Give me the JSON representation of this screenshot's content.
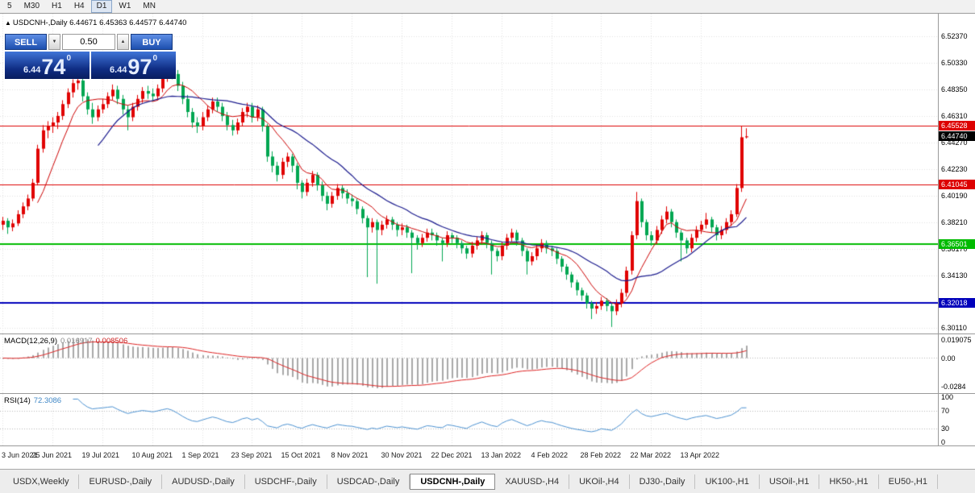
{
  "toolbar": {
    "timeframes": [
      "5",
      "M30",
      "H1",
      "H4",
      "D1",
      "W1",
      "MN"
    ],
    "active": "D1"
  },
  "header": {
    "direction": "▲",
    "symbol": "USDCNH-,Daily",
    "ohlc": "6.44671 6.45363 6.44577 6.44740"
  },
  "trade_panel": {
    "sell_label": "SELL",
    "buy_label": "BUY",
    "volume": "0.50",
    "spinner_up": "▲",
    "spinner_down": "▼",
    "bid": {
      "small": "6.44",
      "big": "74",
      "sup": "0"
    },
    "ask": {
      "small": "6.44",
      "big": "97",
      "sup": "0"
    }
  },
  "indicator_labels": {
    "macd_name": "MACD(12,26,9)",
    "macd_main": "0.016917",
    "macd_signal": "0.008506",
    "rsi_name": "RSI(14)",
    "rsi_value": "72.3086"
  },
  "tabs": {
    "items": [
      "USDX,Weekly",
      "EURUSD-,Daily",
      "AUDUSD-,Daily",
      "USDCHF-,Daily",
      "USDCAD-,Daily",
      "USDCNH-,Daily",
      "XAUUSD-,H4",
      "UKOil-,H4",
      "DJ30-,Daily",
      "UK100-,H1",
      "USOil-,H1",
      "HK50-,H1",
      "EU50-,H1"
    ],
    "active": "USDCNH-,Daily"
  },
  "chart_data": {
    "type": "candlestick",
    "symbol": "USDCNH-",
    "timeframe": "Daily",
    "current_bar": {
      "open": 6.44671,
      "high": 6.45363,
      "low": 6.44577,
      "close": 6.4474
    },
    "ylim": [
      6.297,
      6.541
    ],
    "y_ticks": [
      "6.52370",
      "6.50330",
      "6.48350",
      "6.46310",
      "6.44270",
      "6.42230",
      "6.40190",
      "6.38210",
      "6.36170",
      "6.34130",
      "6.32090",
      "6.30110"
    ],
    "x_labels": [
      "3 Jun 2021",
      "25 Jun 2021",
      "19 Jul 2021",
      "10 Aug 2021",
      "1 Sep 2021",
      "23 Sep 2021",
      "15 Oct 2021",
      "8 Nov 2021",
      "30 Nov 2021",
      "22 Dec 2021",
      "13 Jan 2022",
      "4 Feb 2022",
      "28 Feb 2022",
      "22 Mar 2022",
      "13 Apr 2022"
    ],
    "x_label_step": 10,
    "up_color": "#e00000",
    "down_color": "#00a651",
    "ma_fast": {
      "period": 8,
      "color": "#cc0000"
    },
    "ma_slow": {
      "period": 20,
      "color": "#1c1c8e"
    },
    "levels": [
      {
        "value": 6.45528,
        "label": "6.45528",
        "color": "#dd0000",
        "width": 1
      },
      {
        "value": 6.41045,
        "label": "6.41045",
        "color": "#dd0000",
        "width": 1
      },
      {
        "value": 6.36501,
        "label": "6.36501",
        "color": "#00bb00",
        "width": 2
      },
      {
        "value": 6.32018,
        "label": "6.32018",
        "color": "#0000bb",
        "width": 2
      }
    ],
    "current_price": {
      "value": 6.4474,
      "label": "6.44740",
      "box_color": "#000000"
    },
    "macd": {
      "params": [
        12,
        26,
        9
      ],
      "main": 0.016917,
      "signal": 0.008506,
      "scale": {
        "top": "0.019075",
        "zero": "0.00",
        "bottom": "-0.0284"
      },
      "hist_color": "#a8a8a8",
      "signal_color": "#dd2222"
    },
    "rsi": {
      "period": 14,
      "value": 72.3086,
      "scale": [
        "100",
        "70",
        "30",
        "0"
      ],
      "levels": [
        70,
        30
      ],
      "color": "#4a90d0"
    },
    "ohlc": [
      [
        6.38,
        6.386,
        6.376,
        6.383
      ],
      [
        6.383,
        6.385,
        6.373,
        6.378
      ],
      [
        6.378,
        6.384,
        6.375,
        6.381
      ],
      [
        6.381,
        6.391,
        6.379,
        6.388
      ],
      [
        6.388,
        6.397,
        6.385,
        6.394
      ],
      [
        6.394,
        6.403,
        6.391,
        6.4
      ],
      [
        6.4,
        6.415,
        6.398,
        6.412
      ],
      [
        6.412,
        6.441,
        6.41,
        6.438
      ],
      [
        6.438,
        6.456,
        6.435,
        6.452
      ],
      [
        6.452,
        6.459,
        6.446,
        6.455
      ],
      [
        6.455,
        6.462,
        6.45,
        6.458
      ],
      [
        6.458,
        6.466,
        6.453,
        6.463
      ],
      [
        6.463,
        6.475,
        6.46,
        6.472
      ],
      [
        6.472,
        6.484,
        6.469,
        6.481
      ],
      [
        6.481,
        6.491,
        6.477,
        6.488
      ],
      [
        6.488,
        6.494,
        6.483,
        6.49
      ],
      [
        6.49,
        6.493,
        6.474,
        6.478
      ],
      [
        6.478,
        6.481,
        6.464,
        6.468
      ],
      [
        6.468,
        6.473,
        6.457,
        6.462
      ],
      [
        6.462,
        6.471,
        6.459,
        6.468
      ],
      [
        6.468,
        6.476,
        6.465,
        6.472
      ],
      [
        6.472,
        6.481,
        6.469,
        6.478
      ],
      [
        6.478,
        6.487,
        6.475,
        6.483
      ],
      [
        6.483,
        6.486,
        6.472,
        6.476
      ],
      [
        6.476,
        6.479,
        6.464,
        6.468
      ],
      [
        6.468,
        6.471,
        6.452,
        6.462
      ],
      [
        6.462,
        6.473,
        6.459,
        6.47
      ],
      [
        6.47,
        6.479,
        6.467,
        6.476
      ],
      [
        6.476,
        6.485,
        6.473,
        6.482
      ],
      [
        6.482,
        6.486,
        6.476,
        6.48
      ],
      [
        6.48,
        6.484,
        6.474,
        6.478
      ],
      [
        6.478,
        6.487,
        6.475,
        6.484
      ],
      [
        6.484,
        6.495,
        6.481,
        6.492
      ],
      [
        6.492,
        6.505,
        6.489,
        6.499
      ],
      [
        6.499,
        6.503,
        6.491,
        6.495
      ],
      [
        6.495,
        6.498,
        6.482,
        6.486
      ],
      [
        6.486,
        6.489,
        6.472,
        6.476
      ],
      [
        6.476,
        6.479,
        6.462,
        6.466
      ],
      [
        6.466,
        6.469,
        6.454,
        6.458
      ],
      [
        6.458,
        6.462,
        6.45,
        6.455
      ],
      [
        6.455,
        6.466,
        6.452,
        6.462
      ],
      [
        6.462,
        6.471,
        6.459,
        6.468
      ],
      [
        6.468,
        6.477,
        6.465,
        6.474
      ],
      [
        6.474,
        6.477,
        6.466,
        6.47
      ],
      [
        6.47,
        6.473,
        6.459,
        6.463
      ],
      [
        6.463,
        6.466,
        6.452,
        6.456
      ],
      [
        6.456,
        6.46,
        6.448,
        6.452
      ],
      [
        6.452,
        6.461,
        6.449,
        6.458
      ],
      [
        6.458,
        6.469,
        6.455,
        6.466
      ],
      [
        6.466,
        6.473,
        6.462,
        6.47
      ],
      [
        6.47,
        6.473,
        6.458,
        6.462
      ],
      [
        6.462,
        6.471,
        6.459,
        6.468
      ],
      [
        6.468,
        6.47,
        6.451,
        6.455
      ],
      [
        6.455,
        6.457,
        6.428,
        6.432
      ],
      [
        6.432,
        6.436,
        6.42,
        6.425
      ],
      [
        6.425,
        6.428,
        6.413,
        6.418
      ],
      [
        6.418,
        6.431,
        6.415,
        6.428
      ],
      [
        6.428,
        6.435,
        6.424,
        6.432
      ],
      [
        6.432,
        6.434,
        6.42,
        6.425
      ],
      [
        6.425,
        6.427,
        6.407,
        6.412
      ],
      [
        6.412,
        6.414,
        6.4,
        6.405
      ],
      [
        6.405,
        6.415,
        6.402,
        6.412
      ],
      [
        6.412,
        6.421,
        6.409,
        6.418
      ],
      [
        6.418,
        6.42,
        6.406,
        6.41
      ],
      [
        6.41,
        6.413,
        6.398,
        6.402
      ],
      [
        6.402,
        6.405,
        6.391,
        6.396
      ],
      [
        6.396,
        6.405,
        6.393,
        6.402
      ],
      [
        6.402,
        6.411,
        6.399,
        6.408
      ],
      [
        6.408,
        6.41,
        6.4,
        6.404
      ],
      [
        6.404,
        6.407,
        6.396,
        6.4
      ],
      [
        6.4,
        6.403,
        6.394,
        6.398
      ],
      [
        6.398,
        6.4,
        6.388,
        6.392
      ],
      [
        6.392,
        6.394,
        6.381,
        6.385
      ],
      [
        6.385,
        6.387,
        6.34,
        6.378
      ],
      [
        6.378,
        6.385,
        6.374,
        6.382
      ],
      [
        6.382,
        6.384,
        6.335,
        6.376
      ],
      [
        6.376,
        6.383,
        6.372,
        6.38
      ],
      [
        6.38,
        6.387,
        6.377,
        6.384
      ],
      [
        6.384,
        6.386,
        6.376,
        6.38
      ],
      [
        6.38,
        6.382,
        6.371,
        6.376
      ],
      [
        6.376,
        6.381,
        6.372,
        6.378
      ],
      [
        6.378,
        6.38,
        6.37,
        6.374
      ],
      [
        6.374,
        6.376,
        6.343,
        6.37
      ],
      [
        6.37,
        6.372,
        6.361,
        6.366
      ],
      [
        6.366,
        6.373,
        6.363,
        6.37
      ],
      [
        6.37,
        6.377,
        6.367,
        6.374
      ],
      [
        6.374,
        6.377,
        6.368,
        6.372
      ],
      [
        6.372,
        6.374,
        6.364,
        6.368
      ],
      [
        6.368,
        6.37,
        6.352,
        6.366
      ],
      [
        6.366,
        6.375,
        6.363,
        6.372
      ],
      [
        6.372,
        6.374,
        6.366,
        6.37
      ],
      [
        6.37,
        6.372,
        6.362,
        6.366
      ],
      [
        6.366,
        6.368,
        6.358,
        6.362
      ],
      [
        6.362,
        6.364,
        6.354,
        6.358
      ],
      [
        6.358,
        6.367,
        6.355,
        6.364
      ],
      [
        6.364,
        6.371,
        6.361,
        6.368
      ],
      [
        6.368,
        6.375,
        6.365,
        6.372
      ],
      [
        6.372,
        6.374,
        6.362,
        6.366
      ],
      [
        6.366,
        6.368,
        6.342,
        6.36
      ],
      [
        6.36,
        6.362,
        6.352,
        6.356
      ],
      [
        6.356,
        6.367,
        6.353,
        6.364
      ],
      [
        6.364,
        6.373,
        6.361,
        6.37
      ],
      [
        6.37,
        6.377,
        6.367,
        6.374
      ],
      [
        6.374,
        6.376,
        6.364,
        6.368
      ],
      [
        6.368,
        6.37,
        6.356,
        6.36
      ],
      [
        6.36,
        6.362,
        6.342,
        6.352
      ],
      [
        6.352,
        6.359,
        6.349,
        6.356
      ],
      [
        6.356,
        6.365,
        6.353,
        6.362
      ],
      [
        6.362,
        6.369,
        6.359,
        6.366
      ],
      [
        6.366,
        6.368,
        6.358,
        6.362
      ],
      [
        6.362,
        6.364,
        6.356,
        6.36
      ],
      [
        6.36,
        6.362,
        6.35,
        6.354
      ],
      [
        6.354,
        6.356,
        6.344,
        6.348
      ],
      [
        6.348,
        6.35,
        6.338,
        6.342
      ],
      [
        6.342,
        6.344,
        6.332,
        6.336
      ],
      [
        6.336,
        6.338,
        6.326,
        6.33
      ],
      [
        6.33,
        6.332,
        6.322,
        6.326
      ],
      [
        6.326,
        6.328,
        6.316,
        6.32
      ],
      [
        6.32,
        6.322,
        6.308,
        6.316
      ],
      [
        6.316,
        6.321,
        6.312,
        6.318
      ],
      [
        6.318,
        6.325,
        6.315,
        6.322
      ],
      [
        6.322,
        6.324,
        6.314,
        6.318
      ],
      [
        6.318,
        6.32,
        6.302,
        6.314
      ],
      [
        6.314,
        6.323,
        6.311,
        6.32
      ],
      [
        6.32,
        6.331,
        6.317,
        6.328
      ],
      [
        6.328,
        6.348,
        6.325,
        6.345
      ],
      [
        6.345,
        6.375,
        6.342,
        6.372
      ],
      [
        6.372,
        6.405,
        6.369,
        6.398
      ],
      [
        6.398,
        6.4,
        6.378,
        6.382
      ],
      [
        6.382,
        6.384,
        6.368,
        6.372
      ],
      [
        6.372,
        6.375,
        6.364,
        6.368
      ],
      [
        6.368,
        6.379,
        6.365,
        6.376
      ],
      [
        6.376,
        6.387,
        6.373,
        6.384
      ],
      [
        6.384,
        6.394,
        6.381,
        6.39
      ],
      [
        6.39,
        6.392,
        6.378,
        6.382
      ],
      [
        6.382,
        6.384,
        6.37,
        6.374
      ],
      [
        6.374,
        6.376,
        6.352,
        6.368
      ],
      [
        6.368,
        6.37,
        6.358,
        6.362
      ],
      [
        6.362,
        6.373,
        6.359,
        6.37
      ],
      [
        6.37,
        6.379,
        6.367,
        6.376
      ],
      [
        6.376,
        6.383,
        6.373,
        6.38
      ],
      [
        6.38,
        6.389,
        6.377,
        6.384
      ],
      [
        6.384,
        6.386,
        6.374,
        6.378
      ],
      [
        6.378,
        6.38,
        6.368,
        6.372
      ],
      [
        6.372,
        6.379,
        6.369,
        6.376
      ],
      [
        6.376,
        6.385,
        6.373,
        6.382
      ],
      [
        6.382,
        6.391,
        6.379,
        6.388
      ],
      [
        6.388,
        6.411,
        6.386,
        6.408
      ],
      [
        6.408,
        6.4552,
        6.405,
        6.4467
      ],
      [
        6.4467,
        6.4536,
        6.4458,
        6.4474
      ]
    ]
  }
}
